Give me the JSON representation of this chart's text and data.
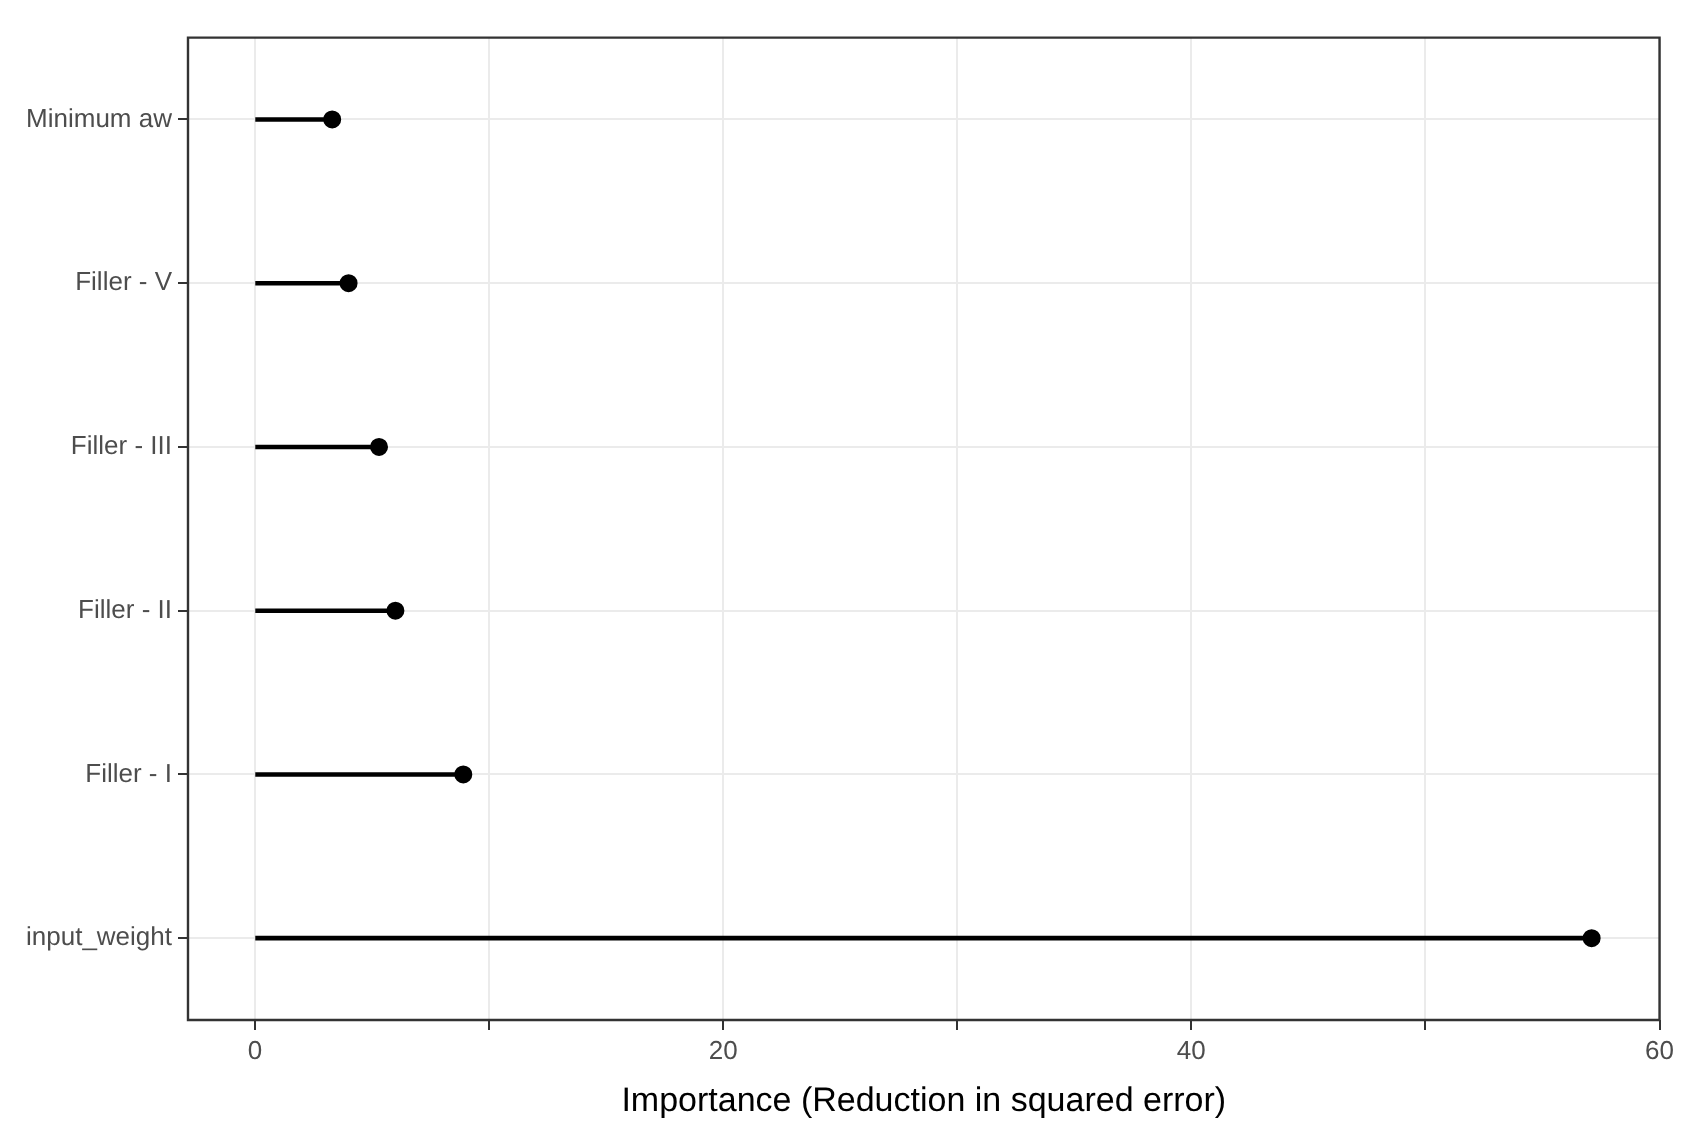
{
  "chart_data": {
    "type": "lollipop",
    "orientation": "horizontal",
    "xlabel": "Importance (Reduction in squared error)",
    "categories": [
      "Minimum aw",
      "Filler - V",
      "Filler - III",
      "Filler - II",
      "Filler - I",
      "input_weight"
    ],
    "values": [
      3.3,
      4.0,
      5.3,
      6.0,
      8.9,
      57.1
    ],
    "color": "#000000",
    "xlim": [
      -2.86,
      60
    ],
    "xticks": [
      0,
      {
        "value": 10,
        "label": null
      },
      20,
      {
        "value": 30,
        "label": null
      },
      40,
      {
        "value": 50,
        "label": null
      },
      60
    ],
    "grid": true,
    "marker": "circle"
  }
}
